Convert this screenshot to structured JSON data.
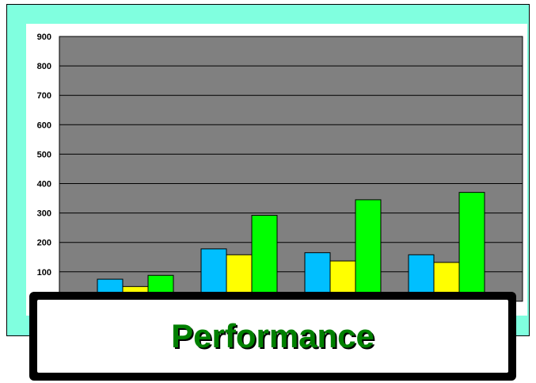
{
  "banner": {
    "title": "Performance"
  },
  "colors": {
    "frame": "#80ffdf",
    "plot_background": "#808080",
    "banner_text": "#008000"
  },
  "chart_data": {
    "type": "bar",
    "categories": [
      "",
      "",
      "",
      ""
    ],
    "series": [
      {
        "color": "#00bfff",
        "values": [
          75,
          178,
          165,
          158
        ]
      },
      {
        "color": "#ffff00",
        "values": [
          50,
          158,
          137,
          132
        ]
      },
      {
        "color": "#00ff00",
        "values": [
          88,
          292,
          345,
          370
        ]
      }
    ],
    "yticks": [
      100,
      200,
      300,
      400,
      500,
      600,
      700,
      800,
      900
    ],
    "ylim": [
      0,
      900
    ],
    "grid": true,
    "legend": false
  }
}
